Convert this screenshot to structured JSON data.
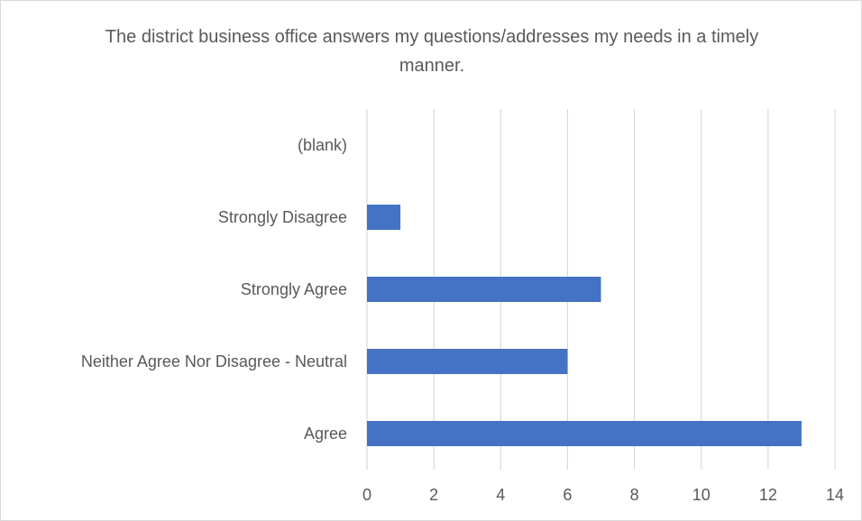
{
  "chart_data": {
    "type": "bar",
    "orientation": "horizontal",
    "title": "The district business office answers my questions/addresses my needs in a timely manner.",
    "categories": [
      "(blank)",
      "Strongly Disagree",
      "Strongly Agree",
      "Neither Agree Nor Disagree - Neutral",
      "Agree"
    ],
    "values": [
      0,
      1,
      7,
      6,
      13
    ],
    "xlim": [
      0,
      14
    ],
    "xticks": [
      0,
      2,
      4,
      6,
      8,
      10,
      12,
      14
    ],
    "xlabel": "",
    "ylabel": "",
    "grid": true,
    "legend": "none",
    "colors": {
      "bar": "#4472c4",
      "grid": "#d9d9d9",
      "text": "#595959"
    }
  }
}
